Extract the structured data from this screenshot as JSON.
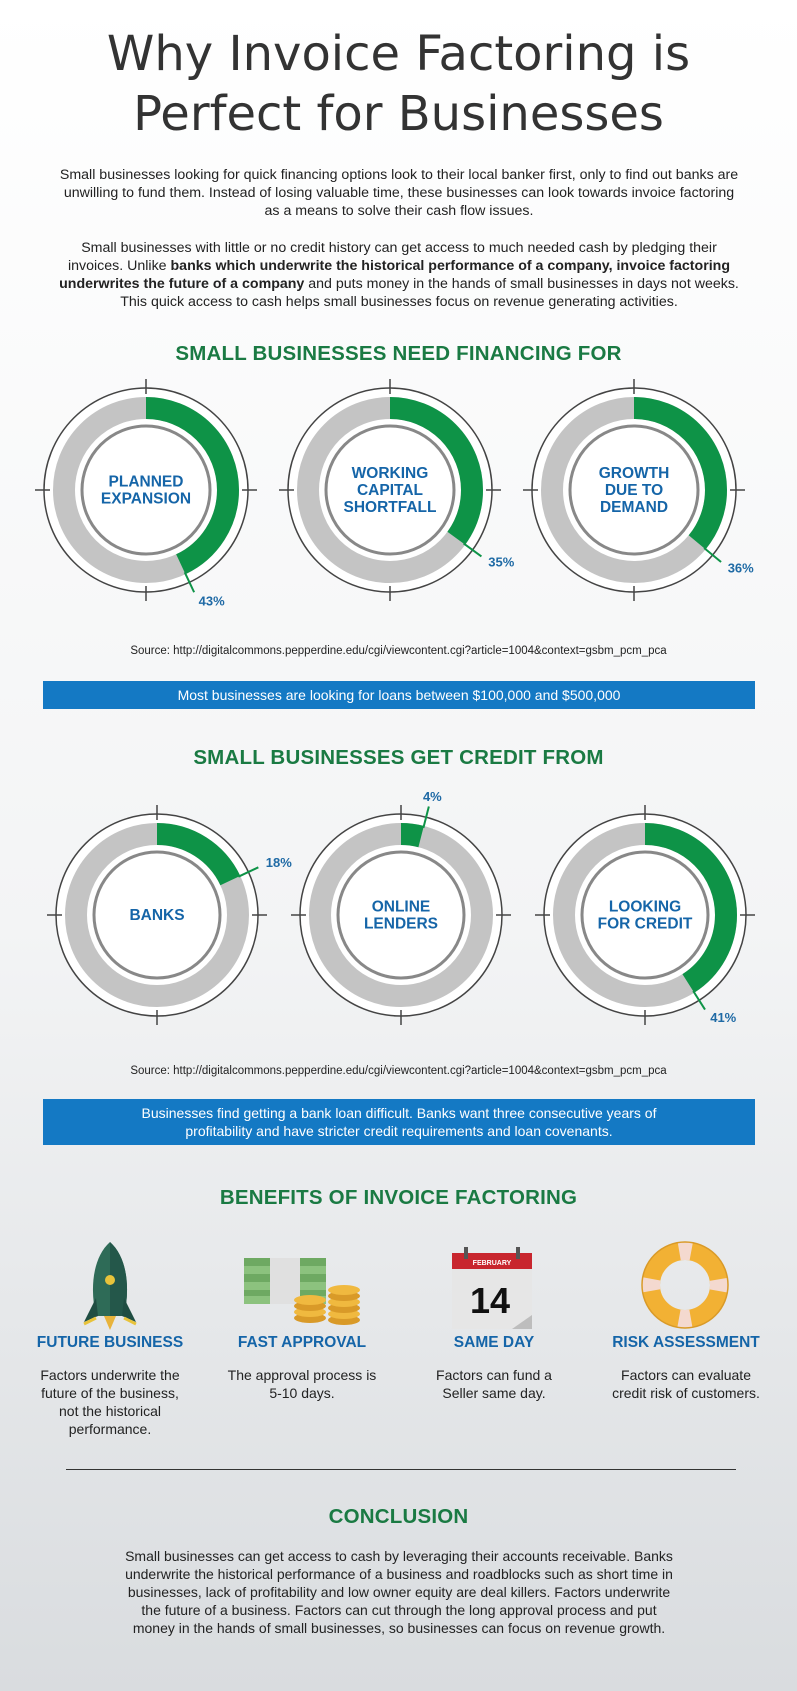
{
  "title_line1": "Why Invoice Factoring is",
  "title_line2": "Perfect for Businesses",
  "intro": {
    "p1_l1": "Small businesses looking for quick financing options look to their local banker first, only to find out banks are",
    "p1_l2": "unwilling to fund them. Instead of losing valuable time, these businesses can look towards invoice factoring",
    "p1_l3": "as a means to solve their cash flow issues.",
    "p2_l1": "Small businesses with little or no credit history can get access to much needed cash by pledging their",
    "p2_l2a": "invoices. Unlike ",
    "p2_l2b": "banks which underwrite the historical performance of a company, invoice factoring",
    "p2_l3a": "underwrites the future of a company",
    "p2_l3b": " and puts money in the hands of small businesses in days not weeks.",
    "p2_l4": "This quick access to cash helps small businesses focus on revenue generating activities."
  },
  "financing": {
    "heading": "SMALL BUSINESSES NEED FINANCING FOR",
    "items": [
      {
        "l1": "PLANNED",
        "l2": "EXPANSION",
        "l3": "",
        "value": 43,
        "pct": "43%"
      },
      {
        "l1": "WORKING",
        "l2": "CAPITAL",
        "l3": "SHORTFALL",
        "value": 35,
        "pct": "35%"
      },
      {
        "l1": "GROWTH",
        "l2": "DUE TO",
        "l3": "DEMAND",
        "value": 36,
        "pct": "36%"
      }
    ],
    "source": "Source: http://digitalcommons.pepperdine.edu/cgi/viewcontent.cgi?article=1004&context=gsbm_pcm_pca",
    "banner": "Most businesses are looking for loans between $100,000 and $500,000"
  },
  "credit": {
    "heading": "SMALL BUSINESSES GET CREDIT FROM",
    "items": [
      {
        "l1": "BANKS",
        "l2": "",
        "value": 18,
        "pct": "18%"
      },
      {
        "l1": "ONLINE",
        "l2": "LENDERS",
        "value": 4,
        "pct": "4%"
      },
      {
        "l1": "LOOKING",
        "l2": "FOR CREDIT",
        "value": 41,
        "pct": "41%"
      }
    ],
    "source": "Source: http://digitalcommons.pepperdine.edu/cgi/viewcontent.cgi?article=1004&context=gsbm_pcm_pca",
    "banner_l1": "Businesses find getting a bank loan difficult. Banks want three consecutive years of",
    "banner_l2": "profitability and have stricter credit requirements and loan covenants."
  },
  "benefits": {
    "heading": "BENEFITS OF INVOICE FACTORING",
    "items": [
      {
        "title": "FUTURE BUSINESS",
        "icon": "rocket-icon",
        "l1": "Factors underwrite the",
        "l2": "future of the business,",
        "l3": "not the historical",
        "l4": "performance."
      },
      {
        "title": "FAST APPROVAL",
        "icon": "cash-and-coins-icon",
        "l1": "The approval process is",
        "l2": "5-10 days.",
        "l3": "",
        "l4": ""
      },
      {
        "title": "SAME DAY",
        "icon": "calendar-icon",
        "l1": "Factors can fund a",
        "l2": "Seller same day.",
        "l3": "",
        "l4": ""
      },
      {
        "title": "RISK ASSESSMENT",
        "icon": "life-ring-icon",
        "l1": "Factors can evaluate",
        "l2": "credit risk of customers.",
        "l3": "",
        "l4": ""
      }
    ],
    "calendar_month": "FEBRUARY",
    "calendar_day": "14"
  },
  "conclusion": {
    "heading": "CONCLUSION",
    "l1": "Small businesses can get access to cash by leveraging their accounts receivable. Banks",
    "l2": "underwrite the historical performance of a business and roadblocks such as short time in",
    "l3": "businesses, lack of profitability and low owner equity are deal killers. Factors underwrite",
    "l4": "the future of a business. Factors can cut through the long approval process and put",
    "l5": "money in the hands of small businesses, so businesses can focus on revenue growth."
  },
  "colors": {
    "green": "#0e9347",
    "ring_gray": "#c4c4c4",
    "blue": "#1479c4",
    "heading_green": "#1a7a43",
    "label_blue": "#1565a8"
  }
}
